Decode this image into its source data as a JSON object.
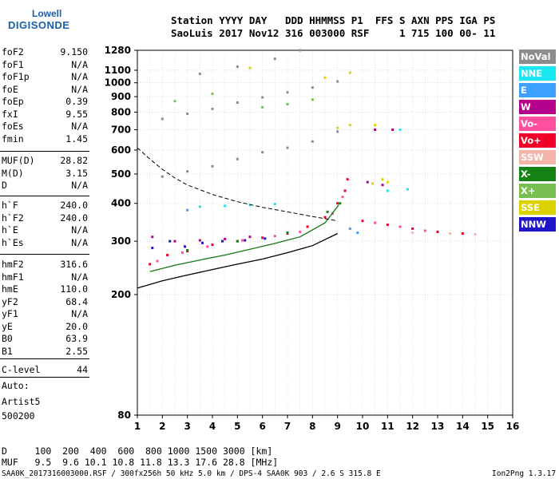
{
  "logo": {
    "line1": "Lowell",
    "line2": "DIGISONDE"
  },
  "header": {
    "labels_line": "Station YYYY DAY   DDD HHMMSS P1  FFS S AXN PPS IGA PS",
    "values_line": "SaoLuis 2017 Nov12 316 003000 RSF     1 715 100 00- 11"
  },
  "parameters": {
    "group1": [
      {
        "name": "foF2",
        "value": "9.150"
      },
      {
        "name": "foF1",
        "value": "N/A"
      },
      {
        "name": "foF1p",
        "value": "N/A"
      },
      {
        "name": "foE",
        "value": "N/A"
      },
      {
        "name": "foEp",
        "value": "0.39"
      },
      {
        "name": "fxI",
        "value": "9.55"
      },
      {
        "name": "foEs",
        "value": "N/A"
      },
      {
        "name": "fmin",
        "value": "1.45"
      }
    ],
    "group2": [
      {
        "name": "MUF(D)",
        "value": "28.82"
      },
      {
        "name": "M(D)",
        "value": "3.15"
      },
      {
        "name": "D",
        "value": "N/A"
      }
    ],
    "group3": [
      {
        "name": "h`F",
        "value": "240.0"
      },
      {
        "name": "h`F2",
        "value": "240.0"
      },
      {
        "name": "h`E",
        "value": "N/A"
      },
      {
        "name": "h`Es",
        "value": "N/A"
      }
    ],
    "group4": [
      {
        "name": "hmF2",
        "value": "316.6"
      },
      {
        "name": "hmF1",
        "value": "N/A"
      },
      {
        "name": "hmE",
        "value": "110.0"
      },
      {
        "name": "yF2",
        "value": "68.4"
      },
      {
        "name": "yF1",
        "value": "N/A"
      },
      {
        "name": "yE",
        "value": "20.0"
      },
      {
        "name": "B0",
        "value": "63.9"
      },
      {
        "name": "B1",
        "value": "2.55"
      }
    ],
    "group5": [
      {
        "name": "C-level",
        "value": "44"
      }
    ]
  },
  "autoscaling": {
    "line1": "Auto:",
    "line2": "Artist5",
    "line3": "500200"
  },
  "legend": [
    {
      "label": "NoVal",
      "color": "#8c8c8c"
    },
    {
      "label": "NNE",
      "color": "#19e6f0"
    },
    {
      "label": "E",
      "color": "#3ca0ff"
    },
    {
      "label": "W",
      "color": "#b4008c"
    },
    {
      "label": "Vo-",
      "color": "#ff50a0"
    },
    {
      "label": "Vo+",
      "color": "#f00028"
    },
    {
      "label": "SSW",
      "color": "#f5b4aa"
    },
    {
      "label": "X-",
      "color": "#148214"
    },
    {
      "label": "X+",
      "color": "#78be50"
    },
    {
      "label": "SSE",
      "color": "#dcd200"
    },
    {
      "label": "NNW",
      "color": "#1e14c8"
    }
  ],
  "muf_table": {
    "d_line": "D     100  200  400  600  800 1000 1500 3000 [km]",
    "muf_line": "MUF   9.5  9.6 10.1 10.8 11.8 13.3 17.6 28.8 [MHz]"
  },
  "footer": {
    "left": "SAA0K_2017316003000.RSF / 300fx256h 50 kHz 5.0 km / DPS-4 SAA0K 903 / 2.6 S 315.8 E",
    "right": "Ion2Png 1.3.17"
  },
  "chart_data": {
    "type": "scatter",
    "title": "",
    "xlabel": "",
    "ylabel": "",
    "xlim": [
      1,
      16
    ],
    "ylim": [
      80,
      1280
    ],
    "y_scale": "log",
    "xticks": [
      1,
      2,
      3,
      4,
      5,
      6,
      7,
      8,
      9,
      10,
      11,
      12,
      13,
      14,
      15,
      16
    ],
    "yticks": [
      80,
      200,
      300,
      400,
      500,
      600,
      700,
      800,
      900,
      1000,
      1100,
      1280
    ],
    "grid": true,
    "legend_position": "right",
    "series": [
      {
        "legend_index": 5,
        "points": [
          [
            1.5,
            252
          ],
          [
            2.2,
            270
          ],
          [
            3,
            278
          ],
          [
            4,
            292
          ],
          [
            5,
            300
          ],
          [
            6,
            308
          ],
          [
            7,
            318
          ],
          [
            7.8,
            335
          ],
          [
            8.5,
            360
          ],
          [
            9,
            400
          ],
          [
            9.3,
            440
          ],
          [
            9.4,
            480
          ],
          [
            10,
            350
          ],
          [
            11,
            340
          ],
          [
            12,
            330
          ],
          [
            13,
            322
          ],
          [
            14,
            318
          ]
        ]
      },
      {
        "legend_index": 4,
        "points": [
          [
            1.8,
            258
          ],
          [
            2.8,
            275
          ],
          [
            3.8,
            288
          ],
          [
            5.2,
            302
          ],
          [
            6.5,
            312
          ],
          [
            7.5,
            322
          ],
          [
            8.8,
            370
          ],
          [
            9.2,
            420
          ],
          [
            10.5,
            345
          ],
          [
            11.5,
            335
          ],
          [
            12.5,
            325
          ]
        ]
      },
      {
        "legend_index": 3,
        "points": [
          [
            1.6,
            310
          ],
          [
            2.5,
            300
          ],
          [
            3.5,
            302
          ],
          [
            4.5,
            305
          ],
          [
            5.5,
            310
          ],
          [
            10.2,
            470
          ],
          [
            10.8,
            460
          ],
          [
            11.2,
            700
          ],
          [
            10.5,
            700
          ]
        ]
      },
      {
        "legend_index": 10,
        "points": [
          [
            1.6,
            285
          ],
          [
            2.3,
            300
          ],
          [
            2.9,
            288
          ],
          [
            3.6,
            296
          ],
          [
            4.4,
            300
          ],
          [
            5.3,
            302
          ],
          [
            6.1,
            306
          ]
        ]
      },
      {
        "legend_index": 1,
        "points": [
          [
            3.5,
            390
          ],
          [
            4.5,
            392
          ],
          [
            5.5,
            395
          ],
          [
            6.5,
            398
          ],
          [
            11,
            440
          ],
          [
            11.8,
            445
          ],
          [
            11.5,
            700
          ]
        ]
      },
      {
        "legend_index": 2,
        "points": [
          [
            9.5,
            330
          ],
          [
            9.8,
            320
          ],
          [
            3,
            380
          ]
        ]
      },
      {
        "legend_index": 9,
        "points": [
          [
            10.4,
            465
          ],
          [
            10.8,
            480
          ],
          [
            11,
            470
          ],
          [
            9,
            710
          ],
          [
            9.5,
            725
          ],
          [
            10.5,
            725
          ],
          [
            9.5,
            1080
          ],
          [
            8.5,
            1040
          ],
          [
            5.5,
            1120
          ]
        ]
      },
      {
        "legend_index": 8,
        "points": [
          [
            6,
            830
          ],
          [
            7,
            850
          ],
          [
            8,
            880
          ],
          [
            2.5,
            870
          ],
          [
            4,
            920
          ]
        ]
      },
      {
        "legend_index": 7,
        "points": [
          [
            3,
            280
          ],
          [
            5,
            300
          ],
          [
            7,
            320
          ],
          [
            8.6,
            375
          ],
          [
            9.1,
            400
          ]
        ]
      },
      {
        "legend_index": 6,
        "points": [
          [
            12,
            320
          ],
          [
            13.5,
            318
          ],
          [
            14.5,
            316
          ]
        ]
      },
      {
        "legend_index": 0,
        "points": [
          [
            2,
            490
          ],
          [
            3,
            510
          ],
          [
            4,
            530
          ],
          [
            5,
            560
          ],
          [
            6,
            590
          ],
          [
            7,
            610
          ],
          [
            8,
            640
          ],
          [
            9,
            690
          ],
          [
            2,
            760
          ],
          [
            3,
            790
          ],
          [
            4,
            820
          ],
          [
            5,
            860
          ],
          [
            6,
            895
          ],
          [
            7,
            930
          ],
          [
            8,
            965
          ],
          [
            9,
            1010
          ],
          [
            3.5,
            1070
          ],
          [
            5,
            1130
          ],
          [
            6.5,
            1200
          ],
          [
            7.5,
            1280
          ]
        ]
      }
    ],
    "curves": [
      {
        "name": "",
        "style": "solid",
        "color": "#000000",
        "points": [
          [
            1,
            210
          ],
          [
            2,
            222
          ],
          [
            3,
            232
          ],
          [
            4,
            242
          ],
          [
            5,
            252
          ],
          [
            6,
            262
          ],
          [
            7,
            275
          ],
          [
            8,
            290
          ],
          [
            9,
            318
          ]
        ]
      },
      {
        "name": "",
        "style": "solid",
        "color": "#147814",
        "points": [
          [
            1.5,
            238
          ],
          [
            2.5,
            250
          ],
          [
            3.5,
            260
          ],
          [
            4.5,
            270
          ],
          [
            5.5,
            282
          ],
          [
            6.5,
            295
          ],
          [
            7.5,
            310
          ],
          [
            8.5,
            345
          ],
          [
            9.05,
            395
          ]
        ]
      },
      {
        "name": "",
        "style": "dashed",
        "color": "#000000",
        "points": [
          [
            1,
            610
          ],
          [
            1.5,
            560
          ],
          [
            2,
            518
          ],
          [
            2.5,
            485
          ],
          [
            3,
            460
          ],
          [
            4,
            428
          ],
          [
            5,
            405
          ],
          [
            6,
            388
          ],
          [
            7,
            375
          ],
          [
            8,
            362
          ],
          [
            9,
            350
          ]
        ]
      }
    ]
  }
}
